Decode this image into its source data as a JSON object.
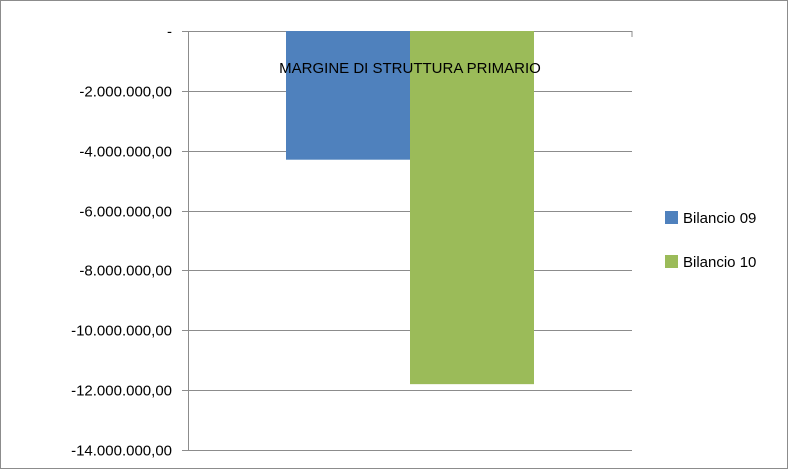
{
  "chart_data": {
    "type": "bar",
    "categories": [
      "MARGINE DI STRUTTURA  PRIMARIO"
    ],
    "series": [
      {
        "name": "Bilancio 09",
        "values": [
          -4300000
        ],
        "color": "#4f81bd"
      },
      {
        "name": "Bilancio 10",
        "values": [
          -11800000
        ],
        "color": "#9bbb59"
      }
    ],
    "ylim": [
      -14000000,
      0
    ],
    "yticks": [
      0,
      -2000000,
      -4000000,
      -6000000,
      -8000000,
      -10000000,
      -12000000,
      -14000000
    ],
    "ytick_labels": [
      "-",
      "-2.000.000,00",
      "-4.000.000,00",
      "-6.000.000,00",
      "-8.000.000,00",
      "-10.000.000,00",
      "-12.000.000,00",
      "-14.000.000,00"
    ],
    "grid": true,
    "legend": "right",
    "title": "",
    "xlabel": "",
    "ylabel": ""
  }
}
